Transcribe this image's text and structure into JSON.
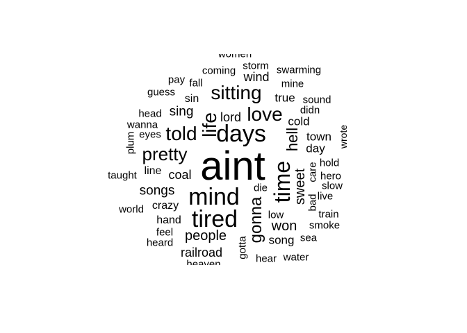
{
  "words": [
    {
      "text": "aint",
      "size": 58,
      "rotate": false
    },
    {
      "text": "days",
      "size": 34,
      "rotate": false
    },
    {
      "text": "mind",
      "size": 34,
      "rotate": false
    },
    {
      "text": "tired",
      "size": 34,
      "rotate": false
    },
    {
      "text": "time",
      "size": 32,
      "rotate": true
    },
    {
      "text": "love",
      "size": 28,
      "rotate": false
    },
    {
      "text": "life",
      "size": 28,
      "rotate": true
    },
    {
      "text": "sitting",
      "size": 28,
      "rotate": false
    },
    {
      "text": "told",
      "size": 28,
      "rotate": false
    },
    {
      "text": "pretty",
      "size": 26,
      "rotate": false
    },
    {
      "text": "gonna",
      "size": 24,
      "rotate": true
    },
    {
      "text": "hell",
      "size": 22,
      "rotate": true
    },
    {
      "text": "sweet",
      "size": 20,
      "rotate": true
    },
    {
      "text": "people",
      "size": 20,
      "rotate": false
    },
    {
      "text": "won",
      "size": 20,
      "rotate": false
    },
    {
      "text": "songs",
      "size": 19,
      "rotate": false
    },
    {
      "text": "sing",
      "size": 19,
      "rotate": false
    },
    {
      "text": "coal",
      "size": 18,
      "rotate": false
    },
    {
      "text": "wind",
      "size": 18,
      "rotate": false
    },
    {
      "text": "railroad",
      "size": 18,
      "rotate": false
    },
    {
      "text": "lord",
      "size": 18,
      "rotate": false
    },
    {
      "text": "town",
      "size": 17,
      "rotate": false
    },
    {
      "text": "day",
      "size": 17,
      "rotate": false
    },
    {
      "text": "cold",
      "size": 17,
      "rotate": false
    },
    {
      "text": "song",
      "size": 17,
      "rotate": false
    },
    {
      "text": "true",
      "size": 17,
      "rotate": false
    },
    {
      "text": "crazy",
      "size": 16,
      "rotate": false
    },
    {
      "text": "hand",
      "size": 16,
      "rotate": false
    },
    {
      "text": "sin",
      "size": 16,
      "rotate": false
    },
    {
      "text": "line",
      "size": 16,
      "rotate": false
    },
    {
      "text": "gotta",
      "size": 15,
      "rotate": true
    },
    {
      "text": "care",
      "size": 15,
      "rotate": true
    },
    {
      "text": "storm",
      "size": 15,
      "rotate": false
    },
    {
      "text": "swarming",
      "size": 15,
      "rotate": false
    },
    {
      "text": "coming",
      "size": 15,
      "rotate": false
    },
    {
      "text": "mine",
      "size": 15,
      "rotate": false
    },
    {
      "text": "sound",
      "size": 15,
      "rotate": false
    },
    {
      "text": "fall",
      "size": 15,
      "rotate": false
    },
    {
      "text": "pay",
      "size": 15,
      "rotate": false
    },
    {
      "text": "guess",
      "size": 15,
      "rotate": false
    },
    {
      "text": "head",
      "size": 15,
      "rotate": false
    },
    {
      "text": "wanna",
      "size": 15,
      "rotate": false
    },
    {
      "text": "eyes",
      "size": 15,
      "rotate": false
    },
    {
      "text": "plum",
      "size": 15,
      "rotate": true
    },
    {
      "text": "taught",
      "size": 15,
      "rotate": false
    },
    {
      "text": "world",
      "size": 15,
      "rotate": false
    },
    {
      "text": "feel",
      "size": 15,
      "rotate": false
    },
    {
      "text": "heard",
      "size": 15,
      "rotate": false
    },
    {
      "text": "didn",
      "size": 15,
      "rotate": false
    },
    {
      "text": "wrote",
      "size": 14,
      "rotate": true
    },
    {
      "text": "hold",
      "size": 15,
      "rotate": false
    },
    {
      "text": "hero",
      "size": 15,
      "rotate": false
    },
    {
      "text": "slow",
      "size": 15,
      "rotate": false
    },
    {
      "text": "live",
      "size": 15,
      "rotate": false
    },
    {
      "text": "bad",
      "size": 15,
      "rotate": true
    },
    {
      "text": "train",
      "size": 15,
      "rotate": false
    },
    {
      "text": "smoke",
      "size": 15,
      "rotate": false
    },
    {
      "text": "sea",
      "size": 15,
      "rotate": false
    },
    {
      "text": "water",
      "size": 15,
      "rotate": false
    },
    {
      "text": "hear",
      "size": 15,
      "rotate": false
    },
    {
      "text": "die",
      "size": 15,
      "rotate": false
    },
    {
      "text": "low",
      "size": 15,
      "rotate": false
    },
    {
      "text": "heaven",
      "size": 15,
      "rotate": false
    },
    {
      "text": "women",
      "size": 15,
      "rotate": false
    }
  ]
}
